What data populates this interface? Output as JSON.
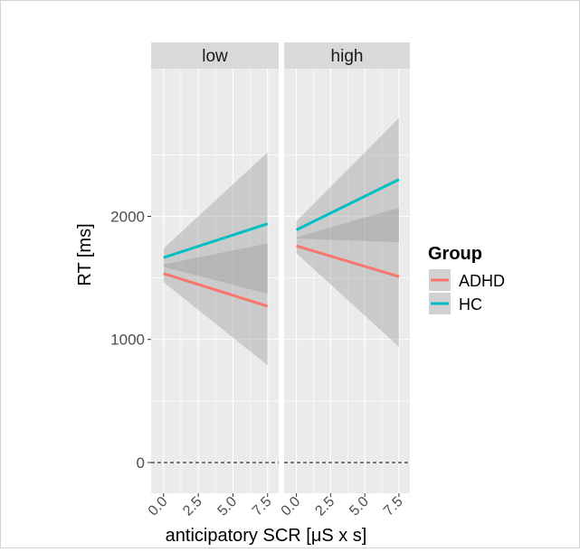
{
  "chart_data": {
    "type": "line",
    "title": "",
    "xlabel": "anticipatory SCR [μS x s]",
    "ylabel": "RT [ms]",
    "xlim": [
      -0.9,
      8.3
    ],
    "ylim": [
      -250,
      3200
    ],
    "x_ticks": [
      "0.0",
      "2.5",
      "5.0",
      "7.5"
    ],
    "x_tick_values": [
      0,
      2.5,
      5,
      7.5
    ],
    "y_ticks": [
      "0",
      "1000",
      "2000"
    ],
    "y_tick_values": [
      0,
      1000,
      2000
    ],
    "grid": true,
    "reference_line": {
      "y": 0,
      "style": "dashed"
    },
    "legend": {
      "title": "Group",
      "placement": "right",
      "entries": [
        {
          "name": "ADHD",
          "color": "#F8766D"
        },
        {
          "name": "HC",
          "color": "#00BFC4"
        }
      ]
    },
    "facets": [
      {
        "label": "low",
        "series": [
          {
            "name": "ADHD",
            "color": "#F8766D",
            "x": [
              0,
              7.5
            ],
            "y": [
              1535,
              1270
            ],
            "ci_lower": [
              1465,
              790
            ],
            "ci_upper": [
              1610,
              1780
            ]
          },
          {
            "name": "HC",
            "color": "#00BFC4",
            "x": [
              0,
              7.5
            ],
            "y": [
              1665,
              1940
            ],
            "ci_lower": [
              1590,
              1370
            ],
            "ci_upper": [
              1740,
              2520
            ]
          }
        ]
      },
      {
        "label": "high",
        "series": [
          {
            "name": "ADHD",
            "color": "#F8766D",
            "x": [
              0,
              7.5
            ],
            "y": [
              1760,
              1510
            ],
            "ci_lower": [
              1700,
              940
            ],
            "ci_upper": [
              1830,
              2070
            ]
          },
          {
            "name": "HC",
            "color": "#00BFC4",
            "x": [
              0,
              7.5
            ],
            "y": [
              1890,
              2300
            ],
            "ci_lower": [
              1820,
              1790
            ],
            "ci_upper": [
              1960,
              2800
            ]
          }
        ]
      }
    ]
  }
}
